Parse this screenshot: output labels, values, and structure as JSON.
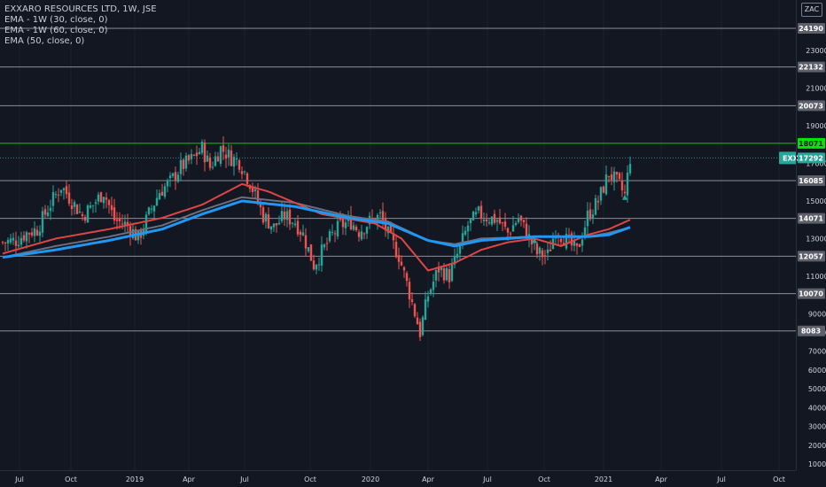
{
  "legend": {
    "title": "EXXARO RESOURCES LTD, 1W, JSE",
    "ema1": "EMA - 1W (30, close, 0)",
    "ema2": "EMA - 1W (60, close, 0)",
    "ema3": "EMA (50, close, 0)"
  },
  "currency": "ZAC",
  "colors": {
    "up": "#26a69a",
    "down": "#ef5350",
    "ema_red": "#e04545",
    "ema_grey": "#6b6f7b",
    "ema_blue": "#2196f3",
    "level_line": "#b2b5be",
    "level_green": "#00e600",
    "last_price": "#26a69a"
  },
  "chart_data": {
    "type": "candlestick",
    "y_range": [
      0,
      25000
    ],
    "y_ticks": [
      "1000",
      "2000",
      "3000",
      "4000",
      "5000",
      "6000",
      "7000",
      "8000",
      "9000",
      "11000",
      "13000",
      "15000",
      "17000",
      "19000",
      "21000",
      "23000"
    ],
    "x_ticks": [
      "Jul",
      "Oct",
      "2019",
      "Apr",
      "Jul",
      "Oct",
      "2020",
      "Apr",
      "Jul",
      "Oct",
      "2021",
      "Apr",
      "Jul",
      "Oct"
    ],
    "horizontal_levels": [
      {
        "value": 24190,
        "label": "24190"
      },
      {
        "value": 22132,
        "label": "22132"
      },
      {
        "value": 20073,
        "label": "20073"
      },
      {
        "value": 18071,
        "label": "18071",
        "color": "green"
      },
      {
        "value": 16085,
        "label": "16085"
      },
      {
        "value": 14071,
        "label": "14071"
      },
      {
        "value": 12057,
        "label": "12057"
      },
      {
        "value": 10070,
        "label": "10070"
      },
      {
        "value": 8083,
        "label": "8083"
      }
    ],
    "last_price": {
      "value": 17292,
      "label": "17292",
      "symbol": "EXX"
    },
    "price_path": [
      [
        0,
        12800
      ],
      [
        5,
        12900
      ],
      [
        9,
        13300
      ],
      [
        13,
        13500
      ],
      [
        17,
        14600
      ],
      [
        22,
        15800
      ],
      [
        26,
        15000
      ],
      [
        30,
        14200
      ],
      [
        34,
        14800
      ],
      [
        38,
        15500
      ],
      [
        42,
        14000
      ],
      [
        47,
        13700
      ],
      [
        51,
        13000
      ],
      [
        55,
        14300
      ],
      [
        59,
        15500
      ],
      [
        63,
        16000
      ],
      [
        67,
        16800
      ],
      [
        71,
        17200
      ],
      [
        75,
        17800
      ],
      [
        78,
        16800
      ],
      [
        82,
        17800
      ],
      [
        86,
        17300
      ],
      [
        89,
        17100
      ],
      [
        93,
        16000
      ],
      [
        98,
        14200
      ],
      [
        102,
        13600
      ],
      [
        106,
        14200
      ],
      [
        110,
        13900
      ],
      [
        113,
        13200
      ],
      [
        117,
        11600
      ],
      [
        121,
        12500
      ],
      [
        124,
        13200
      ],
      [
        127,
        13700
      ],
      [
        131,
        13900
      ],
      [
        134,
        13400
      ],
      [
        138,
        13900
      ],
      [
        142,
        14200
      ],
      [
        145,
        13200
      ],
      [
        149,
        12100
      ],
      [
        153,
        10100
      ],
      [
        157,
        8000
      ],
      [
        160,
        10000
      ],
      [
        164,
        11400
      ],
      [
        168,
        11000
      ],
      [
        172,
        12500
      ],
      [
        175,
        13700
      ],
      [
        179,
        14300
      ],
      [
        183,
        14100
      ],
      [
        186,
        14000
      ],
      [
        190,
        13300
      ],
      [
        194,
        14100
      ],
      [
        197,
        13300
      ],
      [
        201,
        12200
      ],
      [
        205,
        12100
      ],
      [
        208,
        13500
      ],
      [
        212,
        12900
      ],
      [
        216,
        12300
      ],
      [
        220,
        14200
      ],
      [
        224,
        15000
      ],
      [
        228,
        16500
      ],
      [
        232,
        15800
      ],
      [
        234,
        15300
      ],
      [
        236,
        17300
      ]
    ],
    "series": [
      {
        "name": "EMA - 1W (30, close, 0)",
        "points": [
          [
            0,
            12200
          ],
          [
            20,
            13000
          ],
          [
            40,
            13500
          ],
          [
            60,
            14100
          ],
          [
            75,
            14800
          ],
          [
            90,
            15900
          ],
          [
            100,
            15500
          ],
          [
            120,
            14300
          ],
          [
            140,
            13800
          ],
          [
            150,
            13000
          ],
          [
            160,
            11300
          ],
          [
            170,
            11700
          ],
          [
            180,
            12400
          ],
          [
            190,
            12800
          ],
          [
            200,
            13000
          ],
          [
            210,
            12600
          ],
          [
            220,
            13200
          ],
          [
            228,
            13500
          ],
          [
            236,
            14000
          ]
        ]
      },
      {
        "name": "EMA - 1W (60, close, 0)",
        "points": [
          [
            0,
            12000
          ],
          [
            20,
            12600
          ],
          [
            40,
            13100
          ],
          [
            60,
            13700
          ],
          [
            75,
            14500
          ],
          [
            90,
            15200
          ],
          [
            110,
            14900
          ],
          [
            130,
            14200
          ],
          [
            145,
            13900
          ],
          [
            160,
            12900
          ],
          [
            170,
            12700
          ],
          [
            180,
            13000
          ],
          [
            200,
            13100
          ],
          [
            220,
            13100
          ],
          [
            228,
            13300
          ],
          [
            236,
            13600
          ]
        ]
      },
      {
        "name": "EMA (50, close, 0)",
        "points": [
          [
            0,
            12000
          ],
          [
            20,
            12400
          ],
          [
            40,
            12900
          ],
          [
            60,
            13500
          ],
          [
            75,
            14300
          ],
          [
            90,
            15000
          ],
          [
            110,
            14700
          ],
          [
            130,
            14100
          ],
          [
            145,
            13800
          ],
          [
            160,
            12900
          ],
          [
            170,
            12600
          ],
          [
            180,
            12900
          ],
          [
            200,
            13100
          ],
          [
            220,
            13100
          ],
          [
            228,
            13200
          ],
          [
            236,
            13600
          ]
        ]
      }
    ]
  }
}
